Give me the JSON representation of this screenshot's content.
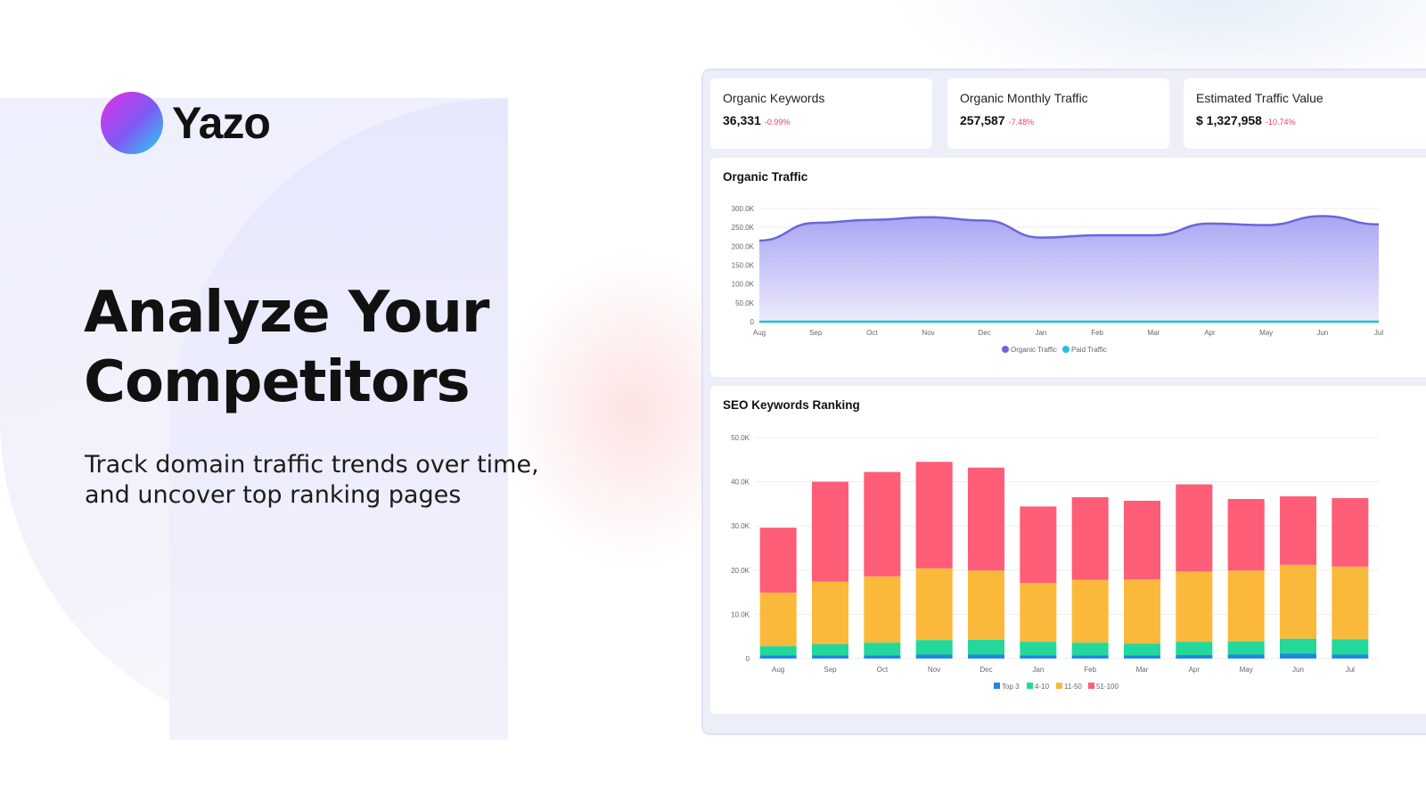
{
  "brand": {
    "name": "Yazo"
  },
  "hero": {
    "title_line1": "Analyze Your",
    "title_line2": "Competitors",
    "subtitle": "Track domain traffic trends over time, and uncover top ranking pages"
  },
  "kpis": [
    {
      "label": "Organic Keywords",
      "value": "36,331",
      "change": "-0.99%"
    },
    {
      "label": "Organic Monthly Traffic",
      "value": "257,587",
      "change": "-7.48%"
    },
    {
      "label": "Estimated Traffic Value",
      "value": "$ 1,327,958",
      "change": "-10.74%"
    }
  ],
  "colors": {
    "organic": "#6b66dc",
    "paid": "#1fc0dc",
    "top3": "#1e88e5",
    "r4_10": "#23d89a",
    "r11_50": "#fbb93c",
    "r51_100": "#fd5d76",
    "negative": "#e0435a"
  },
  "chart_data": [
    {
      "type": "area",
      "title": "Organic Traffic",
      "categories": [
        "Aug",
        "Sep",
        "Oct",
        "Nov",
        "Dec",
        "Jan",
        "Feb",
        "Mar",
        "Apr",
        "May",
        "Jun",
        "Jul"
      ],
      "yticks": [
        "0",
        "50.0K",
        "100.0K",
        "150.0K",
        "200.0K",
        "250.0K",
        "300.0K"
      ],
      "ylim": [
        0,
        300000
      ],
      "grid": true,
      "legend": "bottom",
      "series": [
        {
          "name": "Organic Traffic",
          "values": [
            215000,
            262000,
            270000,
            277000,
            268000,
            223000,
            229000,
            229000,
            260000,
            256000,
            280000,
            258000
          ]
        },
        {
          "name": "Paid Traffic",
          "values": [
            0,
            0,
            0,
            0,
            0,
            0,
            0,
            0,
            0,
            0,
            0,
            0
          ]
        }
      ]
    },
    {
      "type": "bar",
      "stacked": true,
      "title": "SEO Keywords Ranking",
      "categories": [
        "Aug",
        "Sep",
        "Oct",
        "Nov",
        "Dec",
        "Jan",
        "Feb",
        "Mar",
        "Apr",
        "May",
        "Jun",
        "Jul"
      ],
      "yticks": [
        "0",
        "10.0K",
        "20.0K",
        "30.0K",
        "40.0K",
        "50.0K"
      ],
      "ylim": [
        0,
        50000
      ],
      "grid": true,
      "legend": "bottom",
      "series": [
        {
          "name": "Top 3",
          "values": [
            700,
            700,
            700,
            900,
            900,
            700,
            700,
            700,
            800,
            900,
            1100,
            900
          ]
        },
        {
          "name": "4-10",
          "values": [
            2100,
            2600,
            2900,
            3300,
            3400,
            3100,
            2900,
            2700,
            3000,
            3000,
            3400,
            3500
          ]
        },
        {
          "name": "11-50",
          "values": [
            12100,
            14100,
            15000,
            16200,
            15600,
            13300,
            14200,
            14500,
            15900,
            16000,
            16700,
            16400
          ]
        },
        {
          "name": "51-100",
          "values": [
            14700,
            22600,
            23600,
            24100,
            23300,
            17300,
            18700,
            17800,
            19700,
            16200,
            15500,
            15500
          ]
        }
      ]
    }
  ]
}
